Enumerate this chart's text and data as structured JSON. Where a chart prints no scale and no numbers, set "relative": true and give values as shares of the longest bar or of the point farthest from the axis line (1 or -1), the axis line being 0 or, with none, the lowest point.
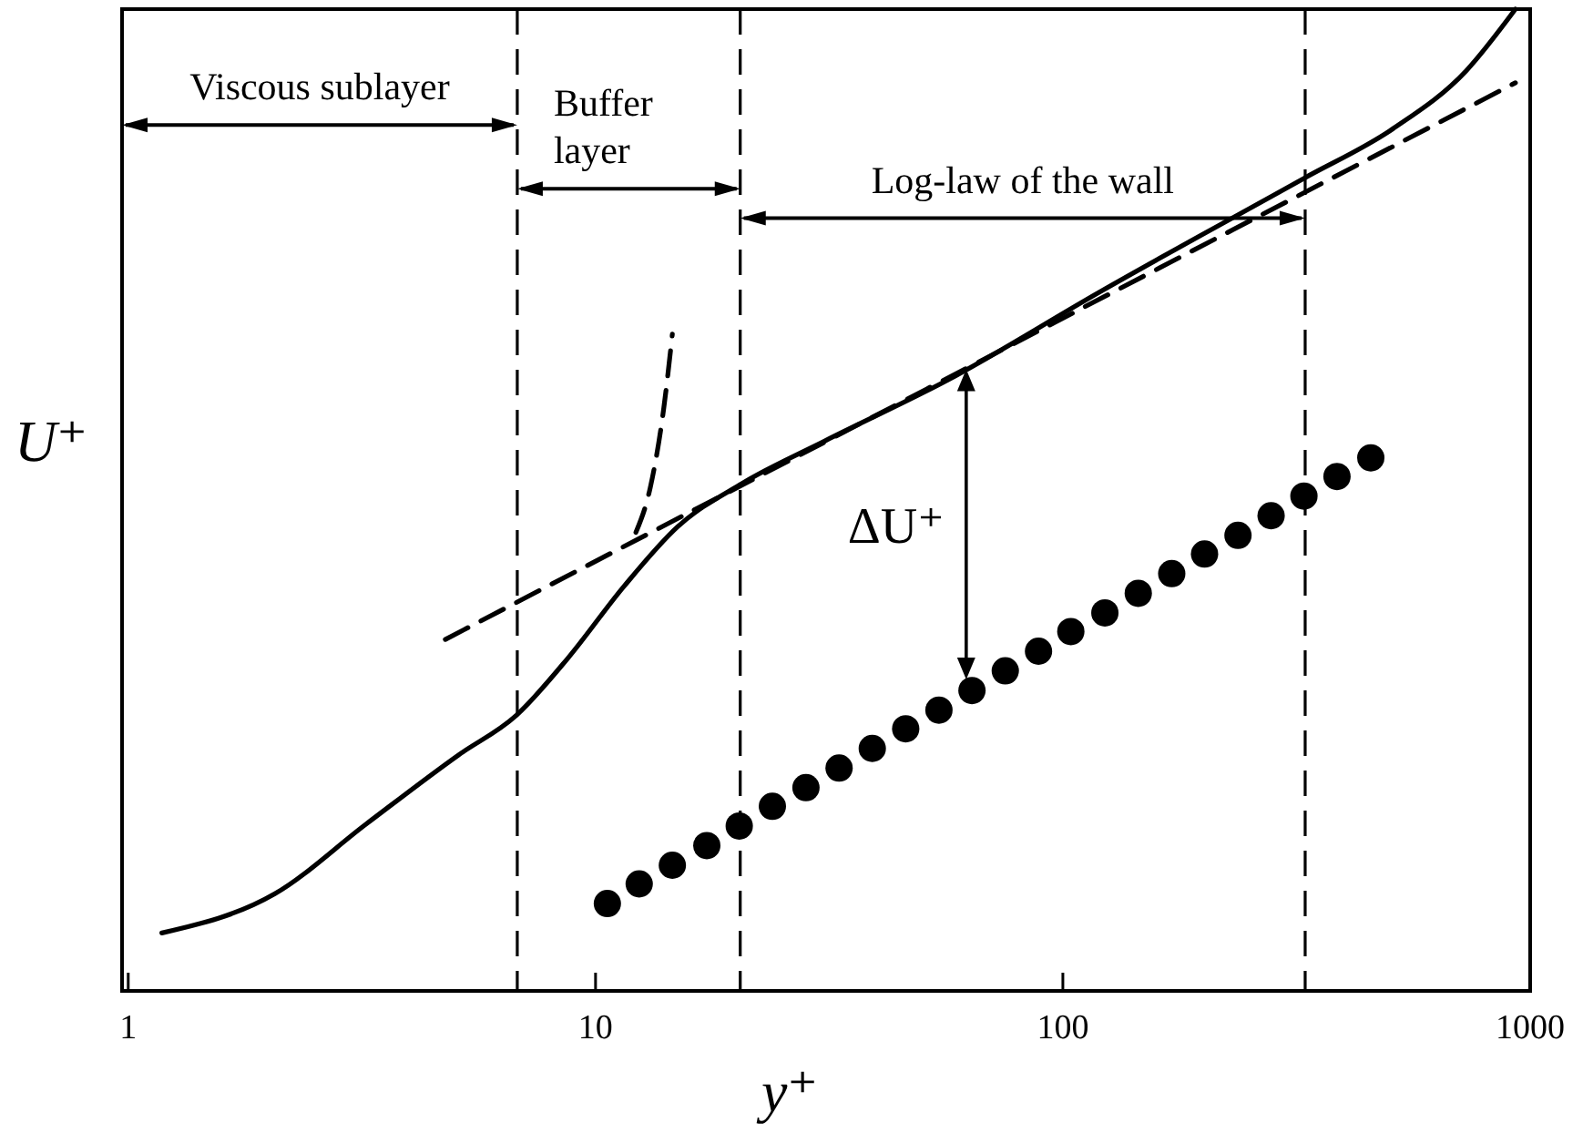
{
  "chart_data": {
    "type": "line",
    "relative": true,
    "log": "x",
    "xlabel": "y⁺",
    "ylabel": "U⁺",
    "xlim": [
      0.97,
      1000
    ],
    "xticks": [
      1,
      10,
      100,
      1000
    ],
    "grid": false,
    "tick_labels": "x",
    "series": [
      {
        "color": "#000000",
        "line_style": "solid",
        "marker": "none",
        "x": [
          1.18,
          2.06,
          3.23,
          5.08,
          6.78,
          8.73,
          11.5,
          15.0,
          20.6,
          30.9,
          56.6,
          120,
          329,
          508,
          729,
          930
        ],
        "values": [
          0.059,
          0.099,
          0.17,
          0.24,
          0.281,
          0.339,
          0.412,
          0.473,
          0.517,
          0.56,
          0.622,
          0.712,
          0.828,
          0.878,
          0.937,
          1
        ]
      },
      {
        "type": "line",
        "color": "#000000",
        "line_style": "dashed",
        "marker": "none",
        "x": [
          4.77,
          930
        ],
        "values": [
          0.358,
          0.925
        ]
      },
      {
        "type": "line",
        "color": "#000000",
        "line_style": "dashed",
        "marker": "none",
        "x": [
          12.2,
          13.1,
          14.0,
          14.6
        ],
        "values": [
          0.467,
          0.513,
          0.594,
          0.669
        ]
      },
      {
        "type": "scatter",
        "color": "#000000",
        "marker": "circle",
        "x": [
          10.6,
          12.4,
          14.6,
          17.3,
          20.3,
          23.9,
          28.2,
          33.2,
          39.1,
          46.1,
          54.3,
          63.9,
          75.3,
          88.7,
          104,
          123,
          145,
          171,
          201,
          237,
          279,
          328,
          386,
          456
        ],
        "values": [
          0.089,
          0.109,
          0.128,
          0.148,
          0.168,
          0.188,
          0.207,
          0.227,
          0.247,
          0.267,
          0.286,
          0.306,
          0.326,
          0.346,
          0.366,
          0.385,
          0.405,
          0.425,
          0.445,
          0.464,
          0.484,
          0.504,
          0.524,
          0.543
        ]
      }
    ],
    "ref_lines": [
      {
        "axis": "x",
        "value": 6.8,
        "line_style": "dashed",
        "color": "#000000"
      },
      {
        "axis": "x",
        "value": 20.4,
        "line_style": "dashed",
        "color": "#000000"
      },
      {
        "axis": "x",
        "value": 330,
        "line_style": "dashed",
        "color": "#000000"
      }
    ],
    "annotations": [
      "Viscous sublayer",
      "Buffer layer",
      "Log-law of the wall",
      "ΔU⁺"
    ]
  }
}
